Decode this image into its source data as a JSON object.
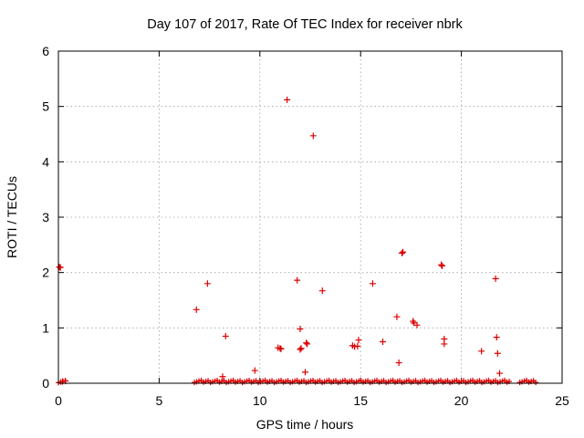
{
  "chart_data": {
    "type": "scatter",
    "title": "Day 107 of 2017, Rate Of TEC Index for receiver nbrk",
    "xlabel": "GPS time / hours",
    "ylabel": "ROTI / TECUs",
    "xlim": [
      0,
      25
    ],
    "ylim": [
      0,
      6
    ],
    "xticks": [
      0,
      5,
      10,
      15,
      20,
      25
    ],
    "yticks": [
      0,
      1,
      2,
      3,
      4,
      5,
      6
    ],
    "grid": true,
    "marker": "+",
    "color": "#dd0000",
    "baseline_segments": [
      {
        "x_start": 0.0,
        "x_end": 0.45,
        "y": 0.01
      },
      {
        "x_start": 6.75,
        "x_end": 22.4,
        "y": 0.015
      },
      {
        "x_start": 22.9,
        "x_end": 23.7,
        "y": 0.015
      }
    ],
    "points": [
      {
        "x": 0.05,
        "y": 2.1
      },
      {
        "x": 0.1,
        "y": 2.09
      },
      {
        "x": 0.2,
        "y": 0.03
      },
      {
        "x": 0.35,
        "y": 0.04
      },
      {
        "x": 6.85,
        "y": 1.33
      },
      {
        "x": 7.4,
        "y": 1.8
      },
      {
        "x": 8.15,
        "y": 0.12
      },
      {
        "x": 8.3,
        "y": 0.85
      },
      {
        "x": 9.75,
        "y": 0.23
      },
      {
        "x": 10.9,
        "y": 0.64
      },
      {
        "x": 11.0,
        "y": 0.63
      },
      {
        "x": 11.05,
        "y": 0.62
      },
      {
        "x": 11.35,
        "y": 5.12
      },
      {
        "x": 11.85,
        "y": 1.86
      },
      {
        "x": 12.0,
        "y": 0.98
      },
      {
        "x": 12.0,
        "y": 0.61
      },
      {
        "x": 12.05,
        "y": 0.63
      },
      {
        "x": 12.25,
        "y": 0.2
      },
      {
        "x": 12.3,
        "y": 0.73
      },
      {
        "x": 12.35,
        "y": 0.71
      },
      {
        "x": 12.65,
        "y": 4.47
      },
      {
        "x": 13.1,
        "y": 1.67
      },
      {
        "x": 14.6,
        "y": 0.68
      },
      {
        "x": 14.7,
        "y": 0.66
      },
      {
        "x": 14.9,
        "y": 0.78
      },
      {
        "x": 14.85,
        "y": 0.67
      },
      {
        "x": 15.6,
        "y": 1.8
      },
      {
        "x": 16.1,
        "y": 0.75
      },
      {
        "x": 16.8,
        "y": 1.2
      },
      {
        "x": 16.9,
        "y": 0.37
      },
      {
        "x": 17.1,
        "y": 2.37
      },
      {
        "x": 17.05,
        "y": 2.35
      },
      {
        "x": 17.6,
        "y": 1.12
      },
      {
        "x": 17.65,
        "y": 1.09
      },
      {
        "x": 17.8,
        "y": 1.05
      },
      {
        "x": 19.0,
        "y": 2.14
      },
      {
        "x": 19.05,
        "y": 2.12
      },
      {
        "x": 19.15,
        "y": 0.8
      },
      {
        "x": 19.15,
        "y": 0.71
      },
      {
        "x": 21.0,
        "y": 0.58
      },
      {
        "x": 21.7,
        "y": 1.89
      },
      {
        "x": 21.75,
        "y": 0.83
      },
      {
        "x": 21.8,
        "y": 0.54
      },
      {
        "x": 21.9,
        "y": 0.18
      }
    ]
  }
}
